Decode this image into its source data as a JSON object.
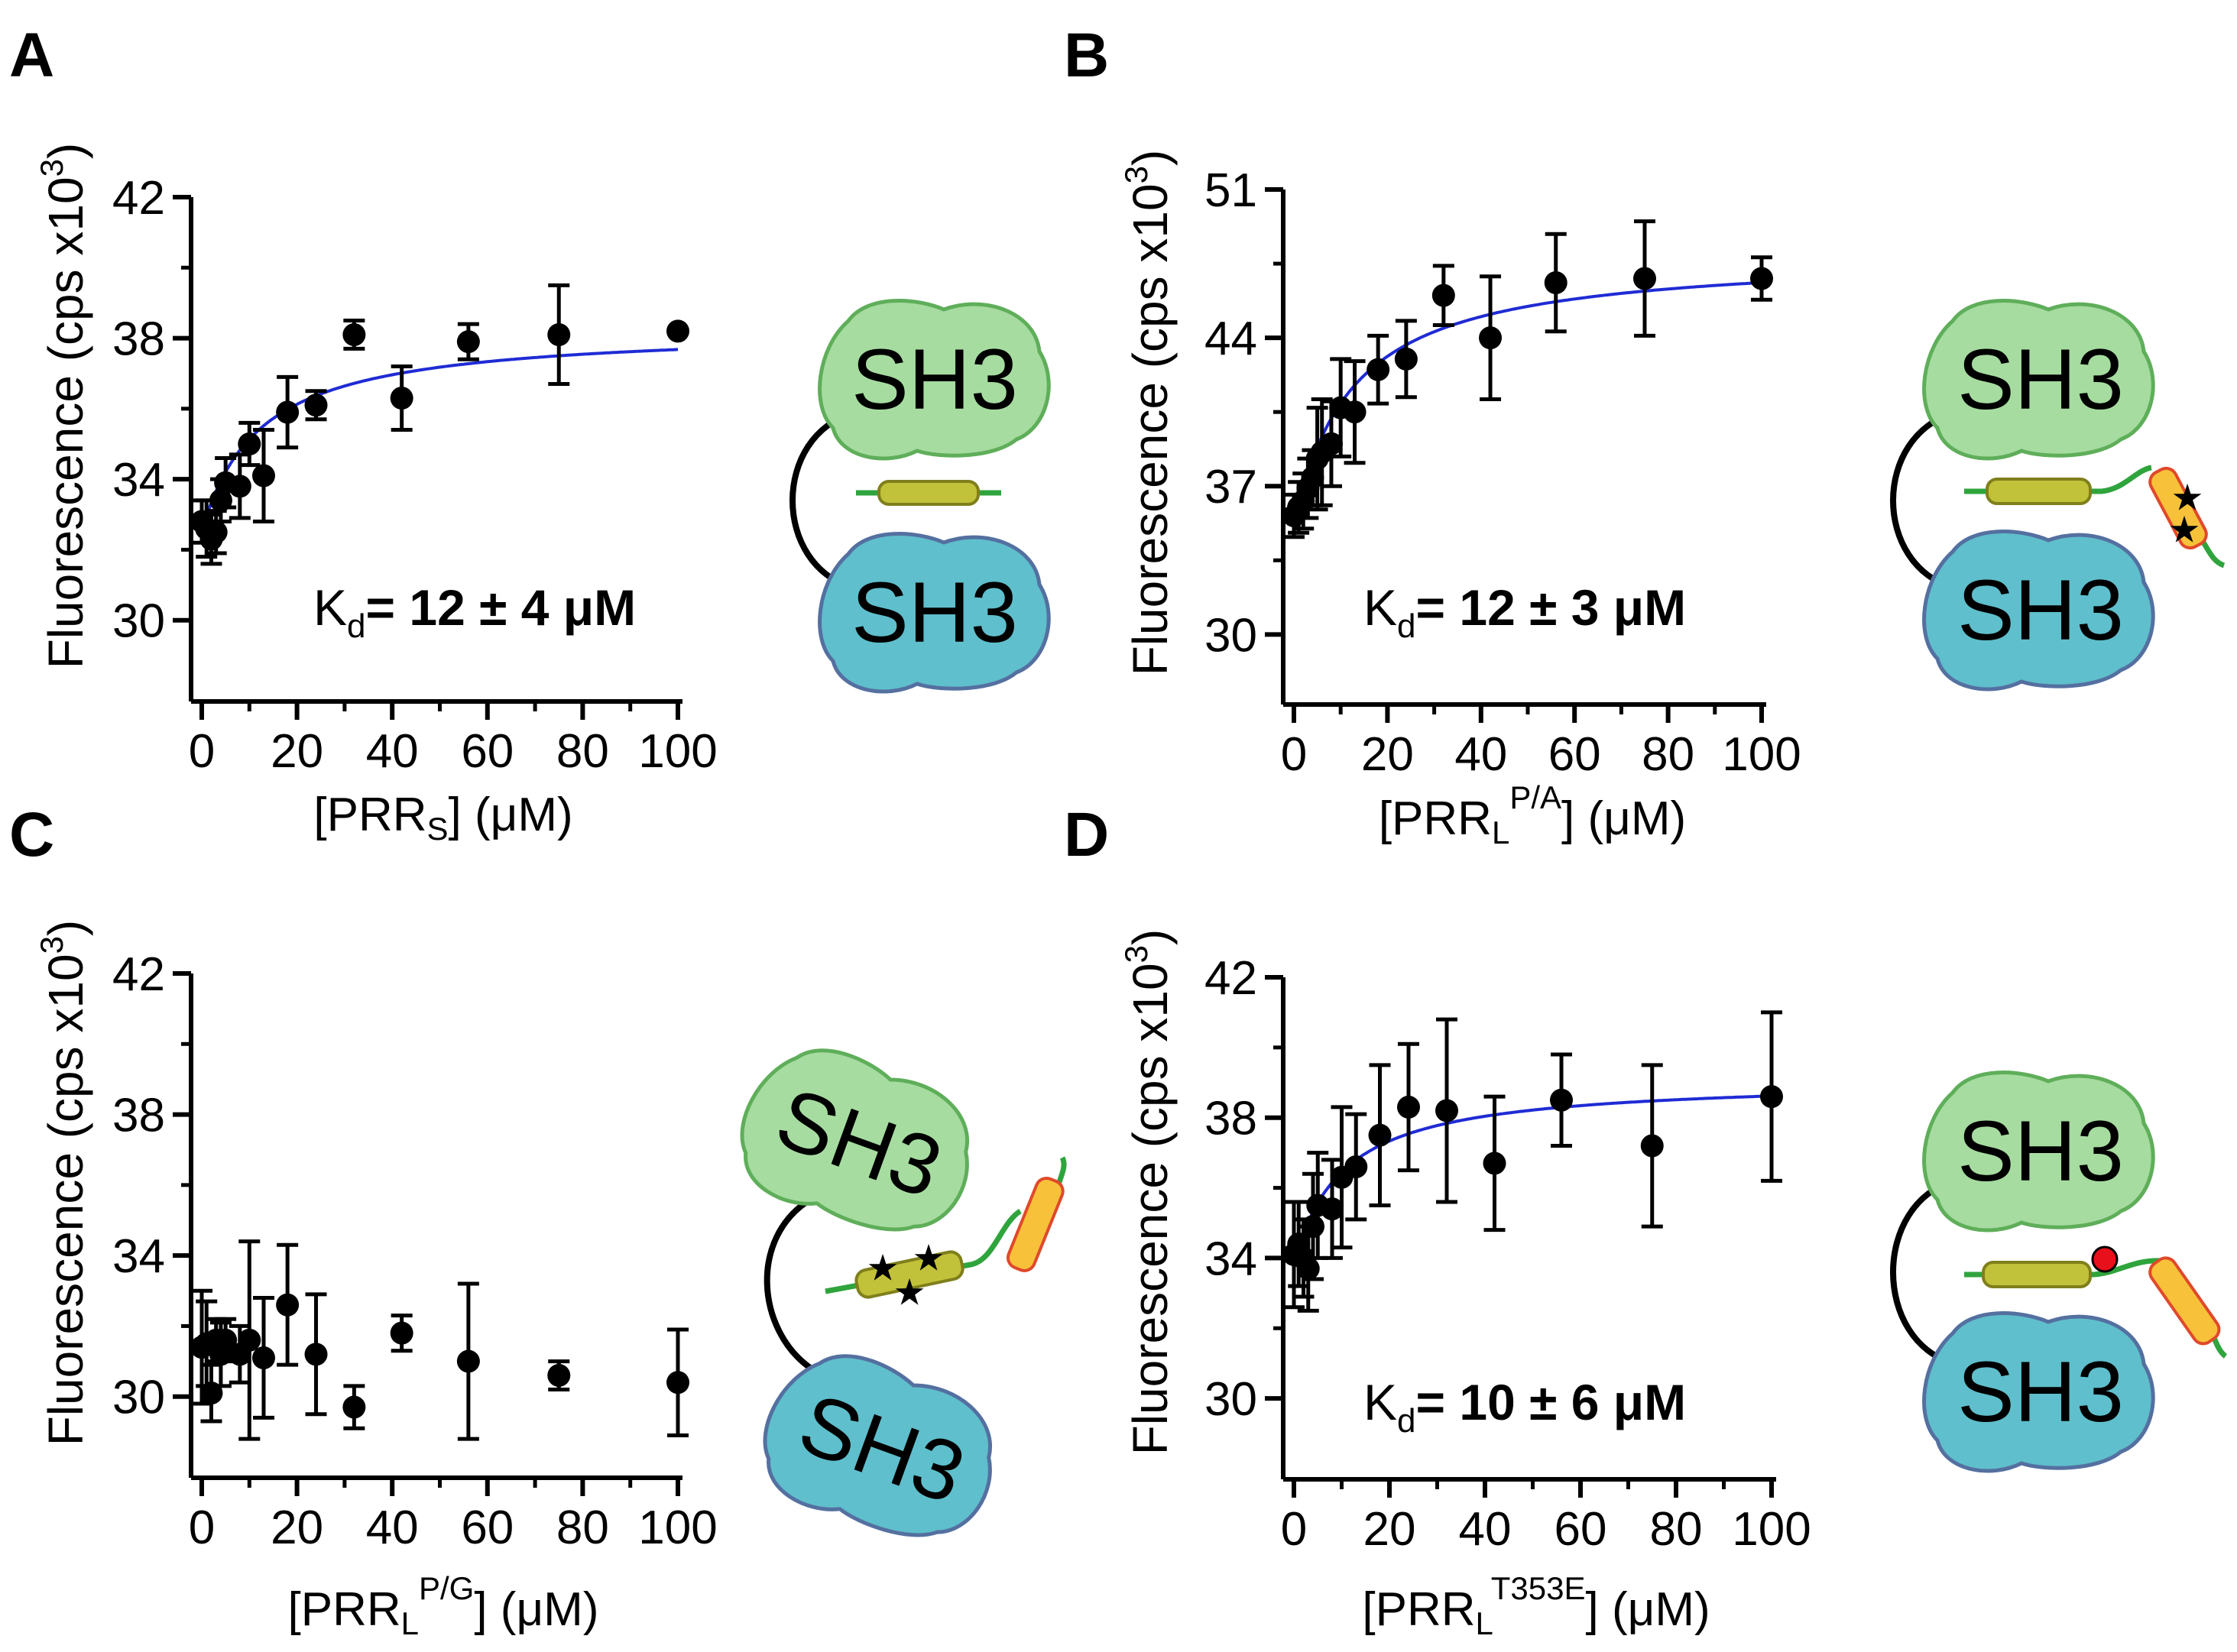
{
  "colors": {
    "ink": "#000000",
    "fit_line": "#1f2bd4",
    "sh3_top_fill": "#a6dca0",
    "sh3_top_stroke": "#5fae5a",
    "sh3_bottom_fill": "#5fbfcc",
    "sh3_bottom_stroke": "#5470a0",
    "helix_fill": "#c2c23a",
    "helix_stroke": "#7f7f1c",
    "linker": "#2fa43d",
    "tail_fill": "#f7c23a",
    "tail_stroke": "#e0492b",
    "mutation_star": "#e02020",
    "phospho": "#e8101a"
  },
  "chart_data": [
    {
      "id": "A",
      "panel_label": "A",
      "type": "scatter",
      "fit_curve": true,
      "ylabel": "Fluorescence (cps x10",
      "ylabel_sup": "3",
      "ylabel_close": ")",
      "xlabel_prefix": "[PRR",
      "xlabel_sub": "S",
      "xlabel_sup": "",
      "xlabel_suffix": "] (μM)",
      "xlim": [
        0,
        100
      ],
      "ylim": [
        28,
        42
      ],
      "x_ticks": [
        0,
        20,
        40,
        60,
        80,
        100
      ],
      "y_ticks": [
        30,
        34,
        38,
        42
      ],
      "kd_label": "K",
      "kd_sub": "d",
      "kd_value": "= 12 ± 4 μM",
      "fit": {
        "ymin": 32.5,
        "amplitude": 5.8,
        "kd": 12
      },
      "points": [
        {
          "x": 0,
          "y": 32.8,
          "err": 0.6
        },
        {
          "x": 1,
          "y": 32.6,
          "err": 0.8
        },
        {
          "x": 2,
          "y": 32.3,
          "err": 0.7
        },
        {
          "x": 3,
          "y": 32.5,
          "err": 0.6
        },
        {
          "x": 4,
          "y": 33.4,
          "err": 0.6
        },
        {
          "x": 5,
          "y": 33.9,
          "err": 0.7
        },
        {
          "x": 8,
          "y": 33.8,
          "err": 0.9
        },
        {
          "x": 10,
          "y": 35.0,
          "err": 0.6
        },
        {
          "x": 13,
          "y": 34.1,
          "err": 1.3
        },
        {
          "x": 18,
          "y": 35.9,
          "err": 1.0
        },
        {
          "x": 24,
          "y": 36.1,
          "err": 0.4
        },
        {
          "x": 32,
          "y": 38.1,
          "err": 0.4
        },
        {
          "x": 42,
          "y": 36.3,
          "err": 0.9
        },
        {
          "x": 56,
          "y": 37.9,
          "err": 0.5
        },
        {
          "x": 75,
          "y": 38.1,
          "err": 1.4
        },
        {
          "x": 100,
          "y": 38.2,
          "err": 0
        }
      ]
    },
    {
      "id": "B",
      "panel_label": "B",
      "type": "scatter",
      "fit_curve": true,
      "ylabel": "Fluorescence (cps x10",
      "ylabel_sup": "3",
      "ylabel_close": ")",
      "xlabel_prefix": "[PRR",
      "xlabel_sub": "L",
      "xlabel_sup": "P/A",
      "xlabel_suffix": "] (μM)",
      "xlim": [
        0,
        100
      ],
      "ylim": [
        27.2,
        51
      ],
      "x_ticks": [
        0,
        20,
        40,
        60,
        80,
        100
      ],
      "y_ticks": [
        30,
        37,
        44,
        51
      ],
      "kd_label": "K",
      "kd_sub": "d",
      "kd_value": "= 12 ± 3 μM",
      "fit": {
        "ymin": 35.0,
        "amplitude": 13.0,
        "kd": 12
      },
      "points": [
        {
          "x": 0,
          "y": 35.6,
          "err": 1.0
        },
        {
          "x": 1,
          "y": 36.0,
          "err": 1.2
        },
        {
          "x": 2,
          "y": 36.3,
          "err": 1.3
        },
        {
          "x": 3,
          "y": 36.9,
          "err": 1.4
        },
        {
          "x": 4,
          "y": 37.4,
          "err": 1.3
        },
        {
          "x": 5,
          "y": 38.3,
          "err": 2.4
        },
        {
          "x": 6,
          "y": 38.6,
          "err": 2.5
        },
        {
          "x": 8,
          "y": 39.0,
          "err": 2.0
        },
        {
          "x": 10,
          "y": 40.7,
          "err": 2.3
        },
        {
          "x": 13,
          "y": 40.5,
          "err": 2.4
        },
        {
          "x": 18,
          "y": 42.5,
          "err": 1.6
        },
        {
          "x": 24,
          "y": 43.0,
          "err": 1.8
        },
        {
          "x": 32,
          "y": 46.0,
          "err": 1.4
        },
        {
          "x": 42,
          "y": 44.0,
          "err": 2.9
        },
        {
          "x": 56,
          "y": 46.6,
          "err": 2.3
        },
        {
          "x": 75,
          "y": 46.8,
          "err": 2.7
        },
        {
          "x": 100,
          "y": 46.8,
          "err": 1.0
        }
      ]
    },
    {
      "id": "C",
      "panel_label": "C",
      "type": "scatter",
      "fit_curve": false,
      "ylabel": "Fluorescence (cps x10",
      "ylabel_sup": "3",
      "ylabel_close": ")",
      "xlabel_prefix": "[PRR",
      "xlabel_sub": "L",
      "xlabel_sup": "P/G",
      "xlabel_suffix": "] (μM)",
      "xlim": [
        0,
        100
      ],
      "ylim": [
        28,
        42
      ],
      "x_ticks": [
        0,
        20,
        40,
        60,
        80,
        100
      ],
      "y_ticks": [
        30,
        34,
        38,
        42
      ],
      "kd_label": "",
      "kd_sub": "",
      "kd_value": "",
      "fit": null,
      "points": [
        {
          "x": 0,
          "y": 31.4,
          "err": 1.6
        },
        {
          "x": 1,
          "y": 31.5,
          "err": 1.2
        },
        {
          "x": 2,
          "y": 30.1,
          "err": 0.8
        },
        {
          "x": 3,
          "y": 31.6,
          "err": 0.6
        },
        {
          "x": 4,
          "y": 31.2,
          "err": 0.9
        },
        {
          "x": 5,
          "y": 31.6,
          "err": 0.6
        },
        {
          "x": 8,
          "y": 31.2,
          "err": 0.8
        },
        {
          "x": 10,
          "y": 31.6,
          "err": 2.8
        },
        {
          "x": 13,
          "y": 31.1,
          "err": 1.7
        },
        {
          "x": 18,
          "y": 32.6,
          "err": 1.7
        },
        {
          "x": 24,
          "y": 31.2,
          "err": 1.7
        },
        {
          "x": 32,
          "y": 29.7,
          "err": 0.6
        },
        {
          "x": 42,
          "y": 31.8,
          "err": 0.5
        },
        {
          "x": 56,
          "y": 31.0,
          "err": 2.2
        },
        {
          "x": 75,
          "y": 30.6,
          "err": 0.4
        },
        {
          "x": 100,
          "y": 30.4,
          "err": 1.5
        }
      ]
    },
    {
      "id": "D",
      "panel_label": "D",
      "type": "scatter",
      "fit_curve": true,
      "ylabel": "Fluorescence (cps x10",
      "ylabel_sup": "3",
      "ylabel_close": ")",
      "xlabel_prefix": "[PRR",
      "xlabel_sub": "L",
      "xlabel_sup": "T353E",
      "xlabel_suffix": "] (μM)",
      "xlim": [
        0,
        100
      ],
      "ylim": [
        28,
        42
      ],
      "x_ticks": [
        0,
        20,
        40,
        60,
        80,
        100
      ],
      "y_ticks": [
        30,
        34,
        38,
        42
      ],
      "kd_label": "K",
      "kd_sub": "d",
      "kd_value": "= 10 ± 6  μM",
      "fit": {
        "ymin": 33.8,
        "amplitude": 5.3,
        "kd": 10
      },
      "points": [
        {
          "x": 0,
          "y": 34.1,
          "err": 1.5
        },
        {
          "x": 1,
          "y": 34.4,
          "err": 1.2
        },
        {
          "x": 2,
          "y": 34.0,
          "err": 1.1
        },
        {
          "x": 3,
          "y": 33.7,
          "err": 1.2
        },
        {
          "x": 4,
          "y": 34.9,
          "err": 1.5
        },
        {
          "x": 5,
          "y": 35.5,
          "err": 1.5
        },
        {
          "x": 8,
          "y": 35.4,
          "err": 1.4
        },
        {
          "x": 10,
          "y": 36.3,
          "err": 2.0
        },
        {
          "x": 13,
          "y": 36.6,
          "err": 1.5
        },
        {
          "x": 18,
          "y": 37.5,
          "err": 2.0
        },
        {
          "x": 24,
          "y": 38.3,
          "err": 1.8
        },
        {
          "x": 32,
          "y": 38.2,
          "err": 2.6
        },
        {
          "x": 42,
          "y": 36.7,
          "err": 1.9
        },
        {
          "x": 56,
          "y": 38.5,
          "err": 1.3
        },
        {
          "x": 75,
          "y": 37.2,
          "err": 2.3
        },
        {
          "x": 100,
          "y": 38.6,
          "err": 2.4
        }
      ]
    }
  ],
  "schematics": {
    "A": {
      "top_label": "SH3",
      "bottom_label": "SH3"
    },
    "B": {
      "top_label": "SH3",
      "bottom_label": "SH3"
    },
    "C": {
      "top_label": "SH3",
      "bottom_label": "SH3"
    },
    "D": {
      "top_label": "SH3",
      "bottom_label": "SH3"
    }
  }
}
